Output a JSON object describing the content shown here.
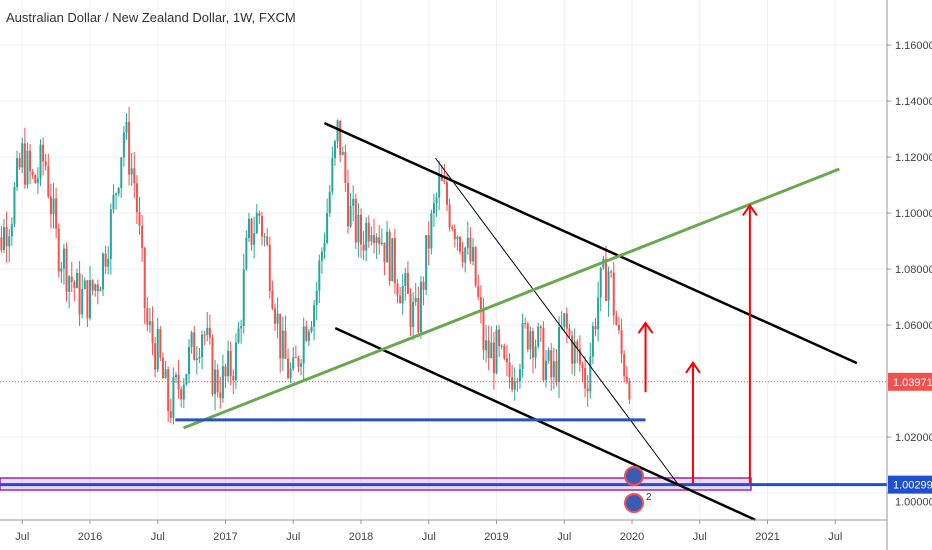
{
  "header": {
    "title": "Australian Dollar / New Zealand Dollar, 1W, FXCM"
  },
  "chart_data": {
    "type": "candlestick",
    "title": "Australian Dollar / New Zealand Dollar, 1W, FXCM",
    "ylim": [
      0.985,
      1.175
    ],
    "y_ticks": [
      "1.16000",
      "1.14000",
      "1.12000",
      "1.10000",
      "1.08000",
      "1.06000",
      "1.02000",
      "1.00000"
    ],
    "y_tick_values": [
      1.16,
      1.14,
      1.12,
      1.1,
      1.08,
      1.06,
      1.02,
      1.0
    ],
    "x_ticks": [
      {
        "label": "Jul",
        "t": 2015.5
      },
      {
        "label": "2016",
        "t": 2016
      },
      {
        "label": "Jul",
        "t": 2016.5
      },
      {
        "label": "2017",
        "t": 2017
      },
      {
        "label": "Jul",
        "t": 2017.5
      },
      {
        "label": "2018",
        "t": 2018
      },
      {
        "label": "Jul",
        "t": 2018.5
      },
      {
        "label": "2019",
        "t": 2019
      },
      {
        "label": "Jul",
        "t": 2019.5
      },
      {
        "label": "2020",
        "t": 2020
      },
      {
        "label": "Jul",
        "t": 2020.5
      },
      {
        "label": "2021",
        "t": 2021
      },
      {
        "label": "Jul",
        "t": 2021.5
      }
    ],
    "monthly_closes_from_apr_2015": [
      1.07,
      1.09,
      1.1,
      1.12,
      1.11,
      1.12,
      1.09,
      1.08,
      1.07,
      1.07,
      1.08,
      1.1,
      1.13,
      1.11,
      1.06,
      1.05,
      1.03,
      1.04,
      1.05,
      1.06,
      1.04,
      1.04,
      1.05,
      1.09,
      1.1,
      1.08,
      1.05,
      1.04,
      1.06,
      1.07,
      1.1,
      1.13,
      1.1,
      1.09,
      1.1,
      1.09,
      1.08,
      1.07,
      1.06,
      1.09,
      1.11,
      1.1,
      1.09,
      1.08,
      1.05,
      1.05,
      1.04,
      1.05,
      1.06,
      1.05,
      1.04,
      1.06,
      1.05,
      1.04,
      1.07,
      1.08,
      1.05,
      1.04
    ],
    "current_price": "1.03971",
    "marked_level": "1.00299",
    "colors": {
      "up": "#26a69a",
      "down": "#ef5350",
      "green_line": "#6aa84f",
      "blue_line": "#2a52be",
      "red_arrow": "#ff0000"
    },
    "annotations": {
      "trendlines": [
        {
          "name": "upper-channel-line",
          "from": [
            2017.73,
            1.1321
          ],
          "to": [
            2021.66,
            1.0464
          ],
          "color": "#000",
          "width": 2.5
        },
        {
          "name": "lower-channel-line",
          "from": [
            2017.81,
            1.0589
          ],
          "to": [
            2020.91,
            0.9904
          ],
          "color": "#000",
          "width": 2.5
        },
        {
          "name": "thin-trendline",
          "from": [
            2018.55,
            1.1196
          ],
          "to": [
            2020.35,
            1.0025
          ],
          "color": "#000",
          "width": 1
        },
        {
          "name": "green-support-line",
          "from": [
            2016.69,
            1.0232
          ],
          "to": [
            2021.53,
            1.1157
          ],
          "color": "#6aa84f",
          "width": 3
        },
        {
          "name": "blue-horizontal-support",
          "from": [
            2016.63,
            1.0261
          ],
          "to": [
            2020.1,
            1.0261
          ],
          "color": "#2a52be",
          "width": 3
        }
      ],
      "arrows": [
        {
          "t": 2020.1,
          "from": 1.036,
          "to": 1.0607
        },
        {
          "t": 2020.45,
          "from": 1.0035,
          "to": 1.0465
        },
        {
          "t": 2020.87,
          "from": 1.0035,
          "to": 1.1027
        }
      ],
      "event_badge_count": "2"
    }
  }
}
